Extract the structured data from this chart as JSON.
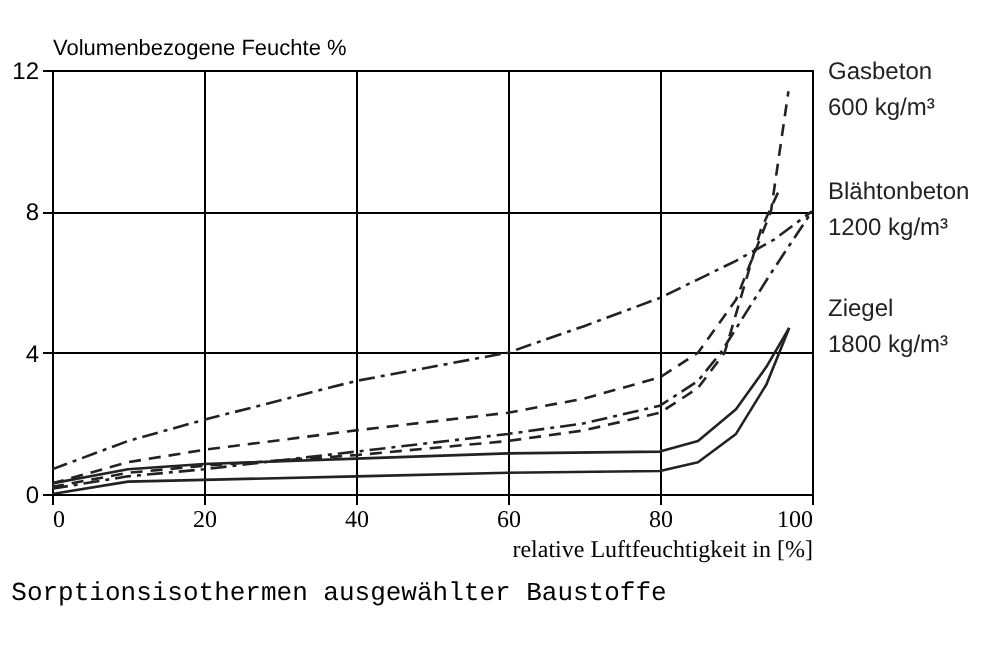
{
  "chart_data": {
    "type": "line",
    "xlabel": "relative Luftfeuchtigkeit in [%]",
    "ylabel": "Volumenbezogene Feuchte %",
    "annotations": [
      "Sorptionsisothermen ausgewählter Baustoffe"
    ],
    "xlim": [
      0,
      100
    ],
    "ylim": [
      0,
      12
    ],
    "xticks": [
      0,
      20,
      40,
      60,
      80,
      100
    ],
    "yticks": [
      0,
      4,
      8,
      12
    ],
    "grid": true,
    "legend": false,
    "marker": "none",
    "series": [
      {
        "name": "Gasbeton\n600 kg/m³",
        "color": "#222222",
        "line_style": "dashed",
        "x": [
          0,
          10,
          20,
          40,
          60,
          70,
          80,
          85,
          90,
          94.6,
          96.9
        ],
        "values": [
          0.3,
          0.9,
          1.25,
          1.8,
          2.3,
          2.7,
          3.3,
          4.0,
          5.5,
          8.0,
          11.4
        ]
      },
      {
        "color": "#222222",
        "line_style": "dashed",
        "x": [
          0,
          10,
          20,
          40,
          60,
          70,
          80,
          85,
          88.5,
          93.3,
          95.9
        ],
        "values": [
          0.2,
          0.6,
          0.8,
          1.1,
          1.5,
          1.8,
          2.3,
          3.0,
          4.0,
          7.5,
          8.7
        ]
      },
      {
        "name": "Blähtonbeton\n1200 kg/m³",
        "color": "#222222",
        "line_style": "dashdot",
        "x": [
          0,
          10,
          20,
          40,
          60,
          70,
          80,
          90,
          95,
          100
        ],
        "values": [
          0.7,
          1.5,
          2.1,
          3.2,
          4.0,
          4.75,
          5.55,
          6.6,
          7.2,
          8.0
        ]
      },
      {
        "color": "#222222",
        "line_style": "dashdot",
        "x": [
          0,
          10,
          20,
          40,
          60,
          70,
          80,
          85,
          88,
          94.6,
          100
        ],
        "values": [
          0.15,
          0.5,
          0.7,
          1.2,
          1.7,
          2.0,
          2.5,
          3.2,
          4.0,
          6.25,
          8.0
        ]
      },
      {
        "name": "Ziegel\n1800 kg/m³",
        "color": "#222222",
        "line_style": "solid",
        "x": [
          0,
          10,
          20,
          40,
          60,
          80,
          85,
          90,
          94,
          97
        ],
        "values": [
          0.3,
          0.7,
          0.85,
          1.0,
          1.15,
          1.2,
          1.5,
          2.4,
          3.6,
          4.7
        ]
      },
      {
        "color": "#222222",
        "line_style": "solid",
        "x": [
          0,
          10,
          20,
          40,
          60,
          80,
          85,
          90,
          94,
          97
        ],
        "values": [
          0.0,
          0.35,
          0.4,
          0.5,
          0.6,
          0.65,
          0.9,
          1.7,
          3.1,
          4.7
        ]
      }
    ]
  }
}
